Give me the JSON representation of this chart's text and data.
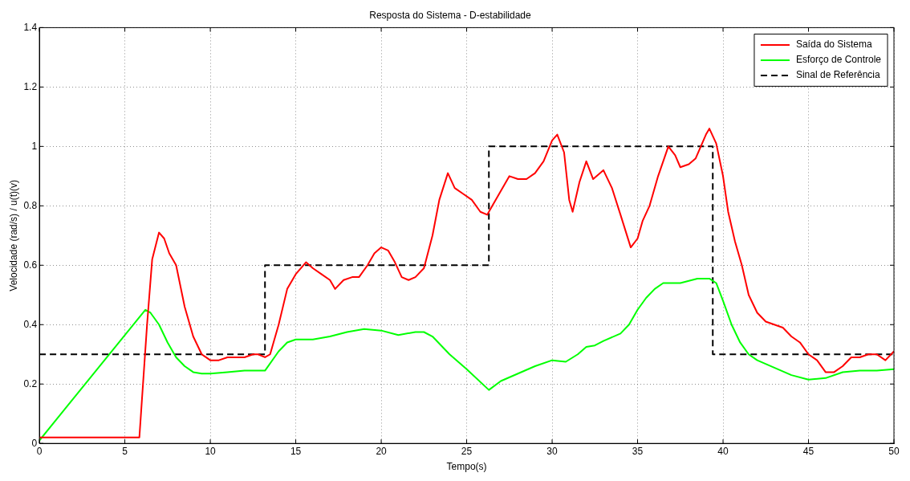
{
  "chart_data": {
    "type": "line",
    "title": "Resposta do Sistema - D-estabilidade",
    "xlabel": "Tempo(s)",
    "ylabel": "Velocidade (rad/s) / u(t)(v)",
    "xlim": [
      0,
      50
    ],
    "xticks": [
      0,
      5,
      10,
      15,
      20,
      25,
      30,
      35,
      40,
      45,
      50
    ],
    "ylim": [
      0,
      1.4
    ],
    "yticks": [
      0,
      0.2,
      0.4,
      0.6,
      0.8,
      1,
      1.2,
      1.4
    ],
    "grid": true,
    "legend": "top right",
    "marker": "none",
    "series": [
      {
        "name": "Saída do Sistema",
        "color": "#ff0000",
        "line_style": "solid",
        "x": [
          0,
          5.85,
          6.3,
          6.6,
          7,
          7.3,
          7.6,
          8,
          8.5,
          9,
          9.5,
          10,
          10.5,
          11,
          11.5,
          12,
          12.5,
          12.8,
          13.2,
          13.5,
          14,
          14.5,
          15,
          15.6,
          16,
          16.5,
          17,
          17.3,
          17.8,
          18.3,
          18.7,
          19.2,
          19.6,
          20,
          20.4,
          20.8,
          21.2,
          21.6,
          22,
          22.5,
          23,
          23.4,
          23.9,
          24.3,
          24.8,
          25.3,
          25.8,
          26.2,
          26.5,
          27,
          27.5,
          28,
          28.5,
          29,
          29.5,
          30,
          30.3,
          30.7,
          31,
          31.2,
          31.6,
          32,
          32.4,
          33,
          33.5,
          34,
          34.6,
          35,
          35.3,
          35.7,
          36.2,
          36.8,
          37.2,
          37.5,
          38,
          38.4,
          39,
          39.2,
          39.6,
          40,
          40.3,
          40.7,
          41.1,
          41.5,
          42,
          42.5,
          43,
          43.5,
          44,
          44.5,
          45,
          45.5,
          46,
          46.5,
          47,
          47.5,
          48,
          48.5,
          49,
          49.5,
          50
        ],
        "values": [
          0.02,
          0.02,
          0.4,
          0.62,
          0.71,
          0.69,
          0.64,
          0.6,
          0.46,
          0.36,
          0.3,
          0.28,
          0.28,
          0.29,
          0.29,
          0.29,
          0.3,
          0.3,
          0.29,
          0.3,
          0.4,
          0.52,
          0.57,
          0.61,
          0.59,
          0.57,
          0.55,
          0.52,
          0.55,
          0.56,
          0.56,
          0.6,
          0.64,
          0.66,
          0.65,
          0.61,
          0.56,
          0.55,
          0.56,
          0.59,
          0.7,
          0.82,
          0.91,
          0.86,
          0.84,
          0.82,
          0.78,
          0.77,
          0.8,
          0.85,
          0.9,
          0.89,
          0.89,
          0.91,
          0.95,
          1.02,
          1.04,
          0.98,
          0.82,
          0.78,
          0.88,
          0.95,
          0.89,
          0.92,
          0.86,
          0.77,
          0.66,
          0.69,
          0.75,
          0.8,
          0.9,
          1,
          0.97,
          0.93,
          0.94,
          0.96,
          1.04,
          1.06,
          1.01,
          0.9,
          0.78,
          0.68,
          0.6,
          0.5,
          0.44,
          0.41,
          0.4,
          0.39,
          0.36,
          0.34,
          0.3,
          0.28,
          0.24,
          0.24,
          0.26,
          0.29,
          0.29,
          0.3,
          0.3,
          0.28,
          0.31
        ]
      },
      {
        "name": "Esforço de Controle",
        "color": "#00ff00",
        "line_style": "solid",
        "x": [
          0,
          6.2,
          6.5,
          7,
          7.5,
          8,
          8.5,
          9,
          9.5,
          10,
          11,
          12,
          13.2,
          14,
          14.5,
          15,
          16,
          17,
          18,
          19,
          20,
          21,
          22,
          22.5,
          23,
          24,
          25,
          26.3,
          27,
          28,
          29,
          30,
          30.8,
          31.5,
          32,
          32.5,
          33,
          34,
          34.5,
          35,
          35.5,
          36,
          36.5,
          37.5,
          38.5,
          39.2,
          39.6,
          40,
          40.5,
          41,
          41.5,
          42,
          43,
          44,
          45,
          46,
          47,
          48,
          49,
          50
        ],
        "values": [
          0.01,
          0.45,
          0.44,
          0.4,
          0.34,
          0.29,
          0.26,
          0.24,
          0.235,
          0.235,
          0.24,
          0.245,
          0.245,
          0.31,
          0.34,
          0.35,
          0.35,
          0.36,
          0.375,
          0.385,
          0.38,
          0.365,
          0.375,
          0.375,
          0.36,
          0.3,
          0.25,
          0.18,
          0.21,
          0.235,
          0.26,
          0.28,
          0.275,
          0.3,
          0.325,
          0.33,
          0.345,
          0.37,
          0.4,
          0.45,
          0.49,
          0.52,
          0.54,
          0.54,
          0.555,
          0.555,
          0.54,
          0.48,
          0.4,
          0.34,
          0.3,
          0.28,
          0.255,
          0.23,
          0.215,
          0.22,
          0.24,
          0.245,
          0.245,
          0.25
        ]
      },
      {
        "name": "Sinal de Referência",
        "color": "#000000",
        "line_style": "dashed",
        "x": [
          0,
          13.2,
          13.2,
          26.3,
          26.3,
          39.4,
          39.4,
          50
        ],
        "values": [
          0.3,
          0.3,
          0.6,
          0.6,
          1,
          1,
          0.3,
          0.3
        ]
      }
    ]
  }
}
